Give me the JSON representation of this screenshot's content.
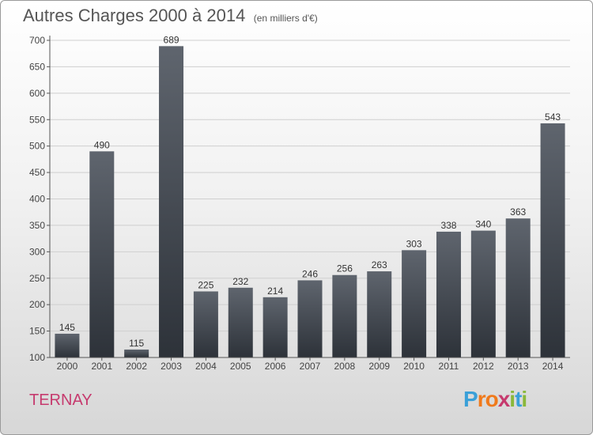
{
  "header": {
    "title": "Autres Charges 2000 à 2014",
    "subtitle": "(en milliers d'€)"
  },
  "footer": {
    "commune": "TERNAY",
    "logo_letters": [
      "P",
      "r",
      "o",
      "x",
      "i",
      "t",
      "i"
    ],
    "logo_colors": [
      "#3aa0d8",
      "#f07a1c",
      "#f07a1c",
      "#c63a6e",
      "#8ab83a",
      "#3aa0d8",
      "#8ab83a"
    ]
  },
  "chart_data": {
    "type": "bar",
    "categories": [
      "2000",
      "2001",
      "2002",
      "2003",
      "2004",
      "2005",
      "2006",
      "2007",
      "2008",
      "2009",
      "2010",
      "2011",
      "2012",
      "2013",
      "2014"
    ],
    "values": [
      145,
      490,
      115,
      689,
      225,
      232,
      214,
      246,
      256,
      263,
      303,
      338,
      340,
      363,
      543
    ],
    "title": "Autres Charges 2000 à 2014",
    "subtitle": "(en milliers d'€)",
    "ylim": [
      100,
      700
    ],
    "yticks": [
      100,
      150,
      200,
      250,
      300,
      350,
      400,
      450,
      500,
      550,
      600,
      650,
      700
    ],
    "grid": true,
    "bar_color_top": "#5f656e",
    "bar_color_bottom": "#2d3239"
  }
}
